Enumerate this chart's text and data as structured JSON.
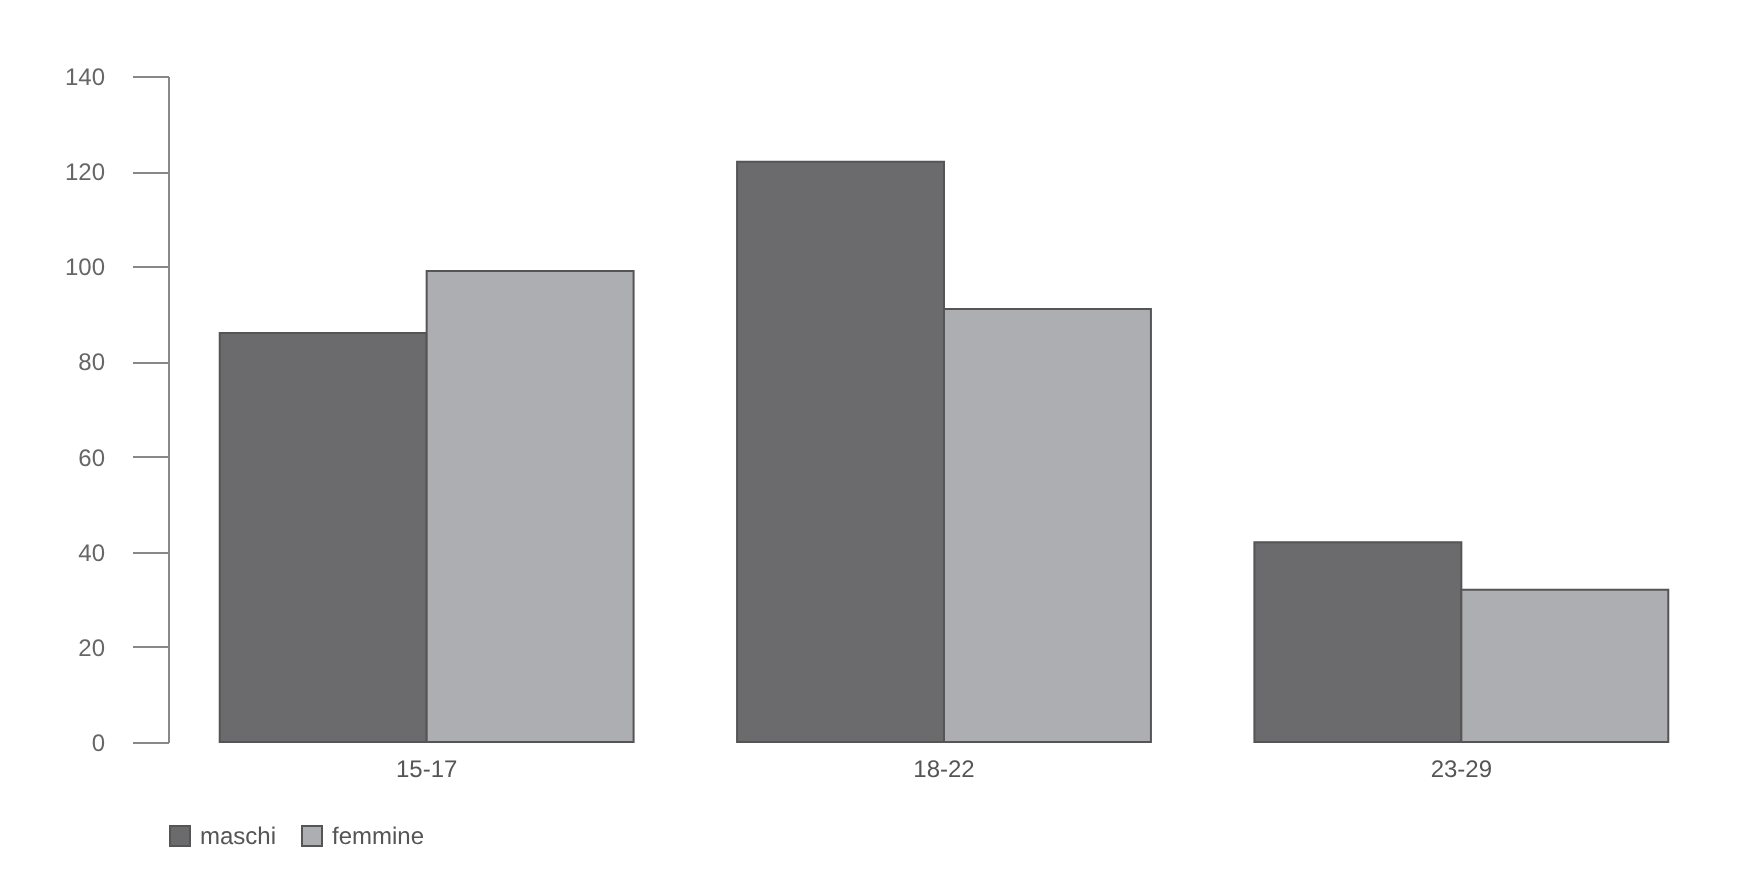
{
  "chart_data": {
    "type": "bar",
    "categories": [
      "15-17",
      "18-22",
      "23-29"
    ],
    "series": [
      {
        "name": "maschi",
        "color": "#6b6b6d",
        "values": [
          86,
          122,
          42
        ]
      },
      {
        "name": "femmine",
        "color": "#adaeb1",
        "values": [
          99,
          91,
          32
        ]
      }
    ],
    "ylim": [
      0,
      140
    ],
    "yticks": [
      0,
      20,
      40,
      60,
      80,
      100,
      120,
      140
    ],
    "grid": false,
    "legend": "bottom"
  }
}
